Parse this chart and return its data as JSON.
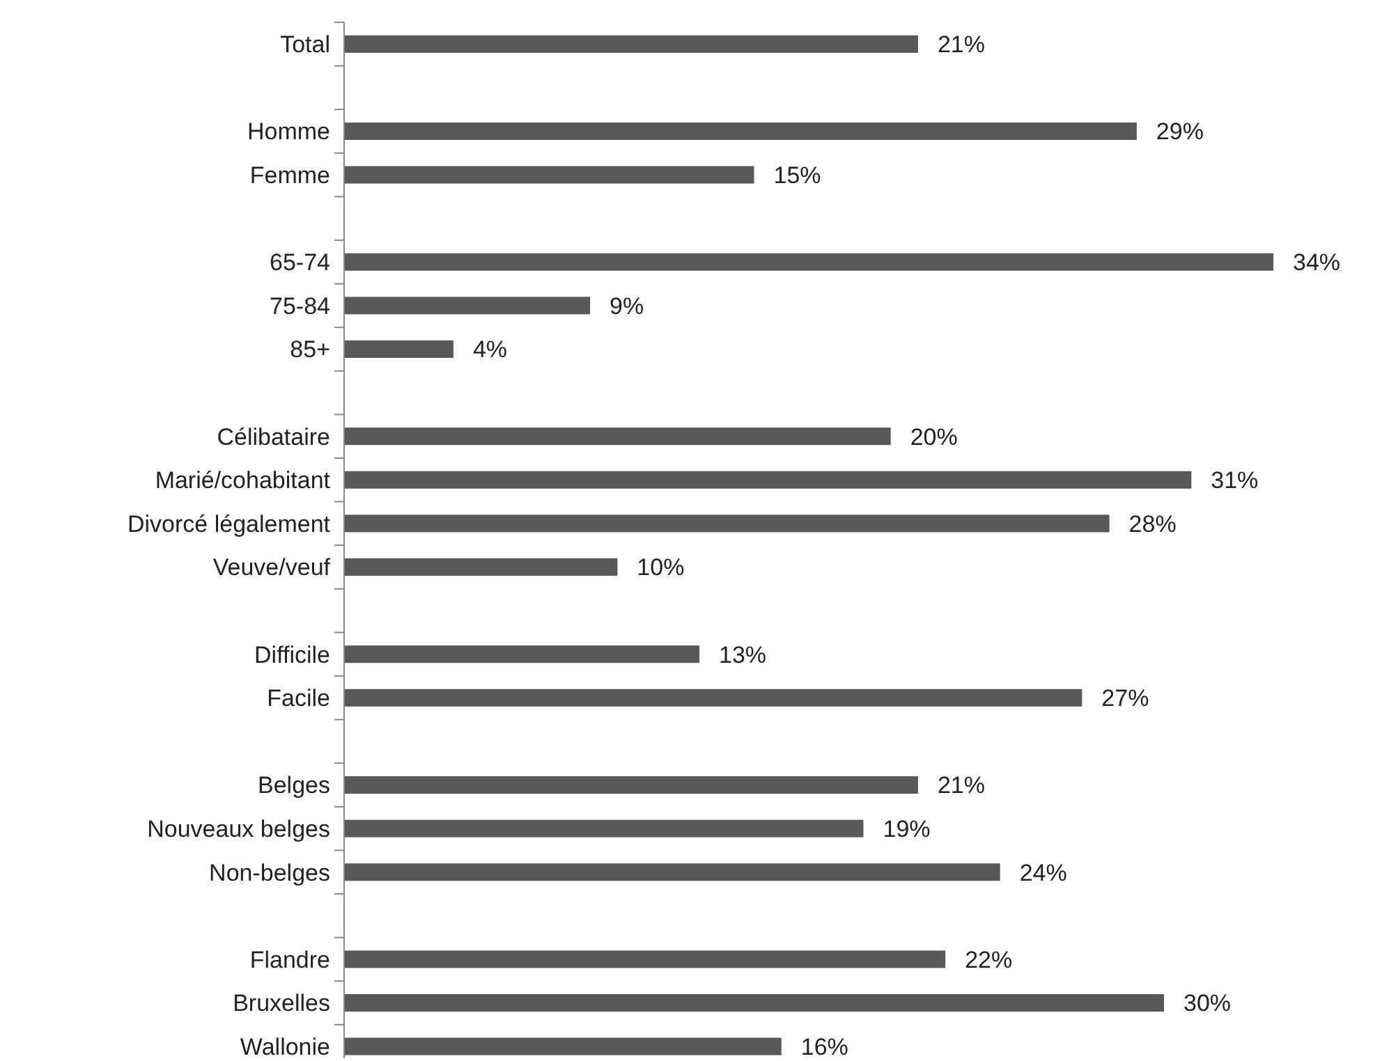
{
  "chart_data": {
    "type": "bar",
    "orientation": "horizontal",
    "color": "#595959",
    "categories": [
      "Total",
      null,
      "Homme",
      "Femme",
      null,
      "65-74",
      "75-84",
      "85+",
      null,
      "Célibataire",
      "Marié/cohabitant",
      "Divorcé légalement",
      "Veuve/veuf",
      null,
      "Difficile",
      "Facile",
      null,
      "Belges",
      "Nouveaux belges",
      "Non-belges",
      null,
      "Flandre",
      "Bruxelles",
      "Wallonie"
    ],
    "values": [
      21,
      null,
      29,
      15,
      null,
      34,
      9,
      4,
      null,
      20,
      31,
      28,
      10,
      null,
      13,
      27,
      null,
      21,
      19,
      24,
      null,
      22,
      30,
      16
    ],
    "value_labels": [
      "21%",
      null,
      "29%",
      "15%",
      null,
      "34%",
      "9%",
      "4%",
      null,
      "20%",
      "31%",
      "28%",
      "10%",
      null,
      "13%",
      "27%",
      null,
      "21%",
      "19%",
      "24%",
      null,
      "22%",
      "30%",
      "16%"
    ]
  }
}
